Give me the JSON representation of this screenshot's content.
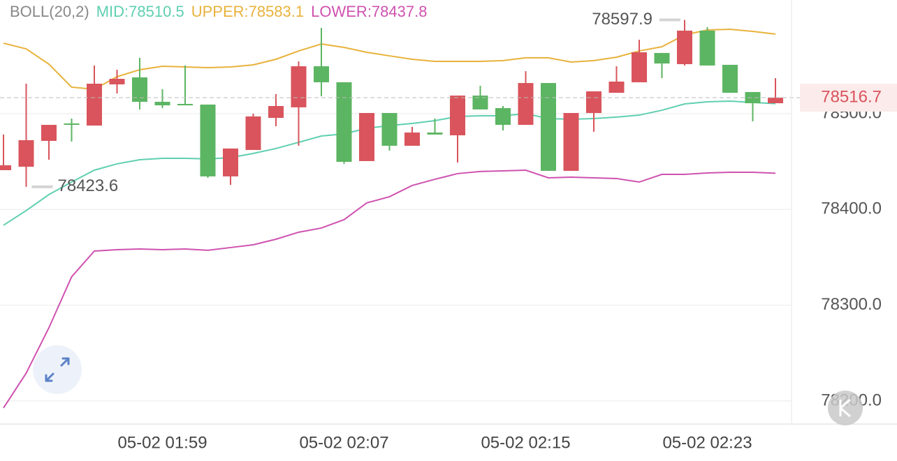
{
  "chart_data": {
    "type": "candlestick",
    "indicator": "BOLL(20,2)",
    "categories": [
      null,
      null,
      null,
      null,
      null,
      null,
      null,
      "05-02 01:59",
      null,
      null,
      null,
      null,
      null,
      null,
      null,
      "05-02 02:07",
      null,
      null,
      null,
      null,
      null,
      null,
      null,
      "05-02 02:15",
      null,
      null,
      null,
      null,
      null,
      null,
      null,
      "05-02 02:23",
      null,
      null,
      null
    ],
    "open": [
      78441.0,
      78444.6,
      78471.6,
      78489.8,
      78487.6,
      78530.6,
      78537.9,
      78512.4,
      78510.2,
      78509.5,
      78434.5,
      78462.1,
      78495.6,
      78506.6,
      78549.5,
      78532.8,
      78450.5,
      78500.7,
      78466.5,
      78480.3,
      78477.4,
      78518.9,
      78505.8,
      78488.3,
      78532.0,
      78440.3,
      78500.7,
      78521.8,
      78532.8,
      78563.4,
      78551.7,
      78586.7,
      78551.0,
      78522.6,
      78510.9
    ],
    "high": [
      78478.2,
      78531.3,
      78488.3,
      78494.9,
      78550.3,
      78545.9,
      78558.3,
      78525.5,
      78550.3,
      78509.5,
      78463.6,
      78500.0,
      78520.4,
      78554.6,
      78589.6,
      78532.8,
      78500.7,
      78500.7,
      78486.2,
      78494.9,
      78518.9,
      78529.1,
      78508.0,
      78544.4,
      78532.0,
      78500.7,
      78523.3,
      78549.5,
      78577.2,
      78563.4,
      78597.9,
      78590.3,
      78551.0,
      78522.6,
      78537.1
    ],
    "low": [
      78441.0,
      78423.6,
      78451.9,
      78470.9,
      78487.6,
      78521.1,
      78504.4,
      78505.8,
      78508.7,
      78433.0,
      78425.7,
      78462.1,
      78486.9,
      78466.5,
      78518.2,
      78447.6,
      78450.5,
      78461.4,
      78466.5,
      78478.2,
      78449.0,
      78504.4,
      78482.5,
      78488.3,
      78440.3,
      78440.3,
      78481.1,
      78521.8,
      78532.8,
      78537.1,
      78550.3,
      78550.3,
      78521.8,
      78492.0,
      78510.9
    ],
    "close": [
      78446.1,
      78472.3,
      78488.3,
      78488.3,
      78531.3,
      78536.4,
      78512.4,
      78508.7,
      78508.7,
      78434.5,
      78463.6,
      78497.1,
      78508.0,
      78549.5,
      78532.8,
      78449.7,
      78500.7,
      78466.5,
      78480.3,
      78478.2,
      78518.9,
      78504.4,
      78488.3,
      78532.0,
      78440.3,
      78500.7,
      78523.3,
      78533.5,
      78564.1,
      78552.4,
      78586.7,
      78550.3,
      78521.8,
      78510.9,
      78516.7
    ],
    "up_color": "#d9545c",
    "down_color": "#5cb562",
    "series": [
      {
        "name": "MID:78510.5",
        "color": "#5fcfb0",
        "values": [
          78383.5,
          78398.8,
          78415.5,
          78428.6,
          78441.0,
          78447.6,
          78451.9,
          78453.4,
          78453.4,
          78452.7,
          78454.1,
          78458.5,
          78463.6,
          78470.1,
          78476.7,
          78478.9,
          78484.7,
          78487.6,
          78489.8,
          78492.7,
          78497.1,
          78497.8,
          78497.8,
          78500.0,
          78494.9,
          78494.2,
          78494.9,
          78496.4,
          78498.5,
          78503.6,
          78510.2,
          78512.4,
          78513.1,
          78511.7,
          78510.5
        ]
      },
      {
        "name": "UPPER:78583.1",
        "color": "#e8b23c",
        "values": [
          78573.6,
          78567.7,
          78551.7,
          78527.7,
          78525.5,
          78538.6,
          78545.9,
          78549.5,
          78548.8,
          78548.1,
          78548.8,
          78551.0,
          78556.8,
          78565.5,
          78572.8,
          78569.2,
          78564.1,
          78560.4,
          78556.8,
          78554.6,
          78554.6,
          78554.6,
          78555.4,
          78558.3,
          78558.3,
          78553.9,
          78555.4,
          78559.0,
          78565.5,
          78569.9,
          78582.3,
          78587.4,
          78588.1,
          78585.9,
          78583.1
        ]
      },
      {
        "name": "LOWER:78437.8",
        "color": "#cf52b0",
        "values": [
          78192.7,
          78229.1,
          78276.4,
          78329.6,
          78356.5,
          78358.0,
          78358.7,
          78358.0,
          78358.7,
          78357.3,
          78360.2,
          78363.1,
          78368.9,
          78376.2,
          78380.6,
          78389.3,
          78406.8,
          78413.3,
          78425.0,
          78431.5,
          78437.4,
          78439.6,
          78440.3,
          78441.0,
          78433.0,
          78433.7,
          78433.0,
          78432.3,
          78428.6,
          78436.6,
          78436.6,
          78438.1,
          78438.8,
          78438.8,
          78437.8
        ]
      }
    ],
    "max_label": 78597.9,
    "min_label": 78423.6,
    "last_price": 78516.7,
    "ylim": [
      78175.9,
      78618.7
    ],
    "yticks": [
      {
        "value": 78200,
        "label": "78200.0"
      },
      {
        "value": 78300,
        "label": "78300.0"
      },
      {
        "value": 78400,
        "label": "78400.0"
      },
      {
        "value": 78500,
        "label": "78500.0"
      }
    ],
    "grid": true
  }
}
